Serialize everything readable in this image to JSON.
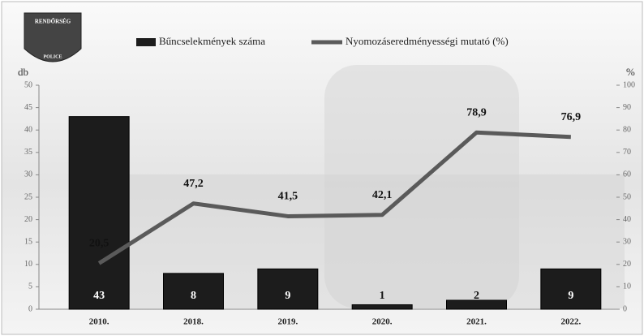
{
  "logo": {
    "top": "RENDŐRSÉG",
    "bottom": "POLICE"
  },
  "chart_data": {
    "type": "bar",
    "y_label": "db",
    "y2_label": "%",
    "categories": [
      "2010.",
      "2018.",
      "2019.",
      "2020.",
      "2021.",
      "2022."
    ],
    "series": [
      {
        "name": "Bűncselekmények száma",
        "type": "bar",
        "color": "#1c1c1c",
        "values": [
          43,
          8,
          9,
          1,
          2,
          9
        ]
      },
      {
        "name": "Nyomozáseredményességi mutató (%)",
        "type": "line",
        "axis": "y2",
        "color": "#5a5a5a",
        "values": [
          20.5,
          47.2,
          41.5,
          42.1,
          78.9,
          76.9
        ],
        "value_labels": [
          "20,5",
          "47,2",
          "41,5",
          "42,1",
          "78,9",
          "76,9"
        ]
      }
    ],
    "ylim": [
      0,
      50
    ],
    "yticks": [
      0,
      5,
      10,
      15,
      20,
      25,
      30,
      35,
      40,
      45,
      50
    ],
    "y2lim": [
      0,
      100
    ],
    "y2ticks": [
      0,
      10,
      20,
      30,
      40,
      50,
      60,
      70,
      80,
      90,
      100
    ],
    "legend": "top"
  }
}
